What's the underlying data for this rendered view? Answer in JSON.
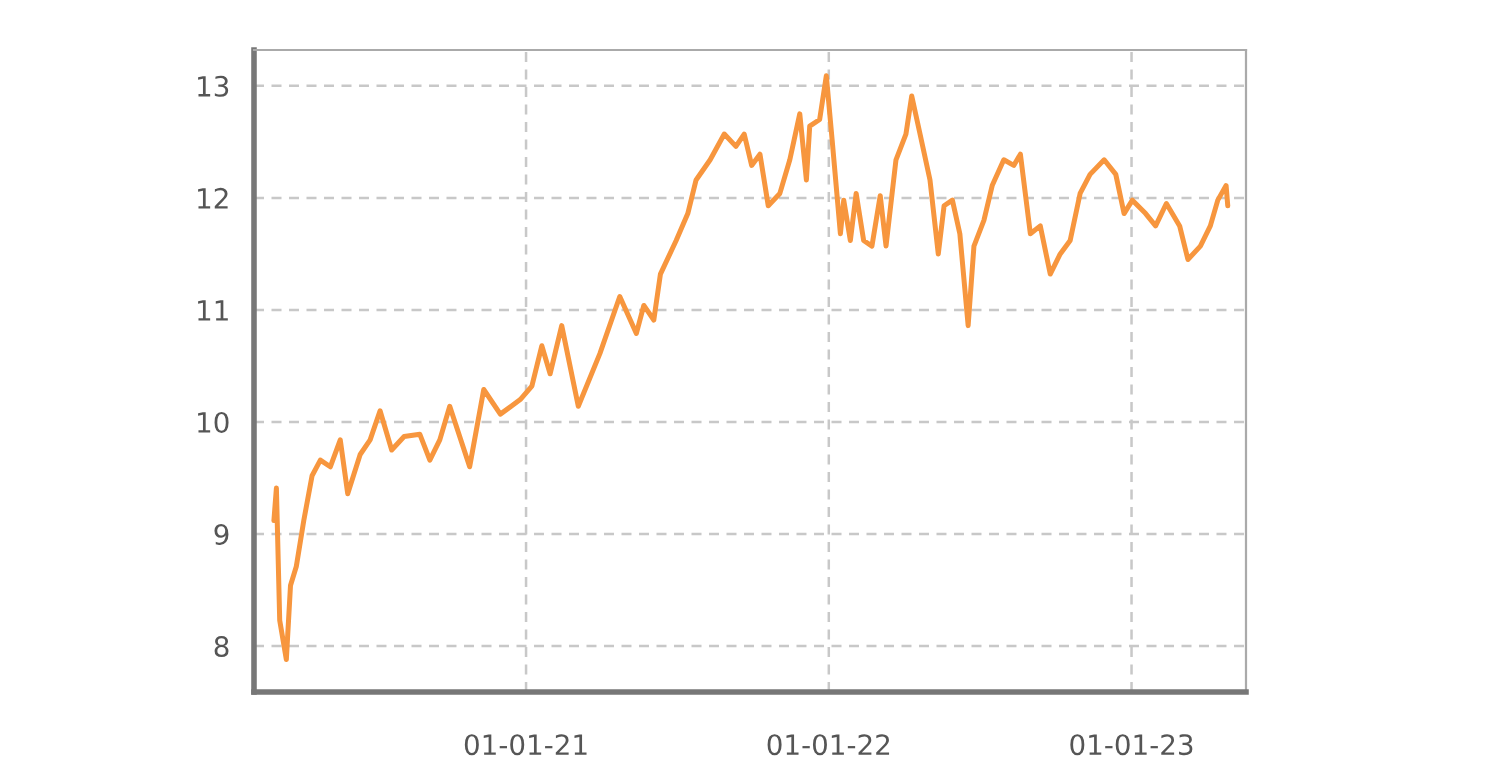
{
  "chart_data": {
    "type": "line",
    "x": [
      "2020-03-03",
      "2020-03-06",
      "2020-03-10",
      "2020-03-18",
      "2020-03-23",
      "2020-03-30",
      "2020-04-08",
      "2020-04-18",
      "2020-04-28",
      "2020-05-10",
      "2020-05-22",
      "2020-05-31",
      "2020-06-15",
      "2020-06-27",
      "2020-07-09",
      "2020-07-23",
      "2020-08-07",
      "2020-08-26",
      "2020-09-07",
      "2020-09-19",
      "2020-10-01",
      "2020-10-25",
      "2020-11-11",
      "2020-12-01",
      "2020-12-25",
      "2021-01-08",
      "2021-01-20",
      "2021-01-30",
      "2021-02-13",
      "2021-03-05",
      "2021-03-31",
      "2021-04-24",
      "2021-05-14",
      "2021-05-23",
      "2021-06-04",
      "2021-06-12",
      "2021-07-01",
      "2021-07-15",
      "2021-07-25",
      "2021-08-11",
      "2021-08-28",
      "2021-09-11",
      "2021-09-21",
      "2021-09-30",
      "2021-10-10",
      "2021-10-20",
      "2021-11-03",
      "2021-11-15",
      "2021-11-27",
      "2021-12-05",
      "2021-12-09",
      "2021-12-21",
      "2021-12-29",
      "2022-01-05",
      "2022-01-15",
      "2022-01-19",
      "2022-01-27",
      "2022-02-03",
      "2022-02-12",
      "2022-02-22",
      "2022-03-04",
      "2022-03-11",
      "2022-03-23",
      "2022-04-04",
      "2022-04-11",
      "2022-04-21",
      "2022-05-03",
      "2022-05-13",
      "2022-05-20",
      "2022-05-30",
      "2022-06-08",
      "2022-06-18",
      "2022-06-25",
      "2022-07-07",
      "2022-07-17",
      "2022-07-31",
      "2022-08-12",
      "2022-08-20",
      "2022-09-01",
      "2022-09-13",
      "2022-09-25",
      "2022-10-07",
      "2022-10-19",
      "2022-10-31",
      "2022-11-12",
      "2022-11-29",
      "2022-12-13",
      "2022-12-23",
      "2023-01-02",
      "2023-01-18",
      "2023-01-30",
      "2023-02-12",
      "2023-02-28",
      "2023-03-10",
      "2023-03-25",
      "2023-04-06",
      "2023-04-15",
      "2023-04-25",
      "2023-04-27"
    ],
    "series": [
      {
        "color": "#f7963e",
        "values": [
          9.12,
          9.41,
          8.23,
          7.88,
          8.54,
          8.71,
          9.12,
          9.52,
          9.66,
          9.6,
          9.84,
          9.36,
          9.71,
          9.84,
          10.1,
          9.75,
          9.87,
          9.89,
          9.66,
          9.84,
          10.14,
          9.6,
          10.29,
          10.07,
          10.2,
          10.32,
          10.68,
          10.43,
          10.86,
          10.14,
          10.61,
          11.12,
          10.79,
          11.04,
          10.91,
          11.32,
          11.62,
          11.86,
          12.16,
          12.34,
          12.57,
          12.46,
          12.57,
          12.29,
          12.39,
          11.93,
          12.04,
          12.34,
          12.75,
          12.16,
          12.64,
          12.7,
          13.09,
          12.52,
          11.68,
          11.98,
          11.62,
          12.04,
          11.62,
          11.57,
          12.02,
          11.57,
          12.34,
          12.57,
          12.91,
          12.57,
          12.16,
          11.5,
          11.93,
          11.98,
          11.68,
          10.86,
          11.57,
          11.8,
          12.11,
          12.34,
          12.29,
          12.39,
          11.68,
          11.75,
          11.32,
          11.5,
          11.62,
          12.04,
          12.21,
          12.34,
          12.21,
          11.86,
          11.98,
          11.86,
          11.75,
          11.95,
          11.75,
          11.45,
          11.57,
          11.75,
          11.98,
          12.11,
          11.93
        ]
      }
    ],
    "xlim": [
      "2020-02-08",
      "2023-05-19"
    ],
    "xticks": [
      {
        "value": "2021-01-01",
        "label": "01-01-21"
      },
      {
        "value": "2022-01-01",
        "label": "01-01-22"
      },
      {
        "value": "2023-01-01",
        "label": "01-01-23"
      }
    ],
    "ylim": [
      7.59,
      13.32
    ],
    "yticks": [
      8,
      9,
      10,
      11,
      12,
      13
    ],
    "grid": true,
    "line_style": "solid",
    "marker": "none"
  }
}
